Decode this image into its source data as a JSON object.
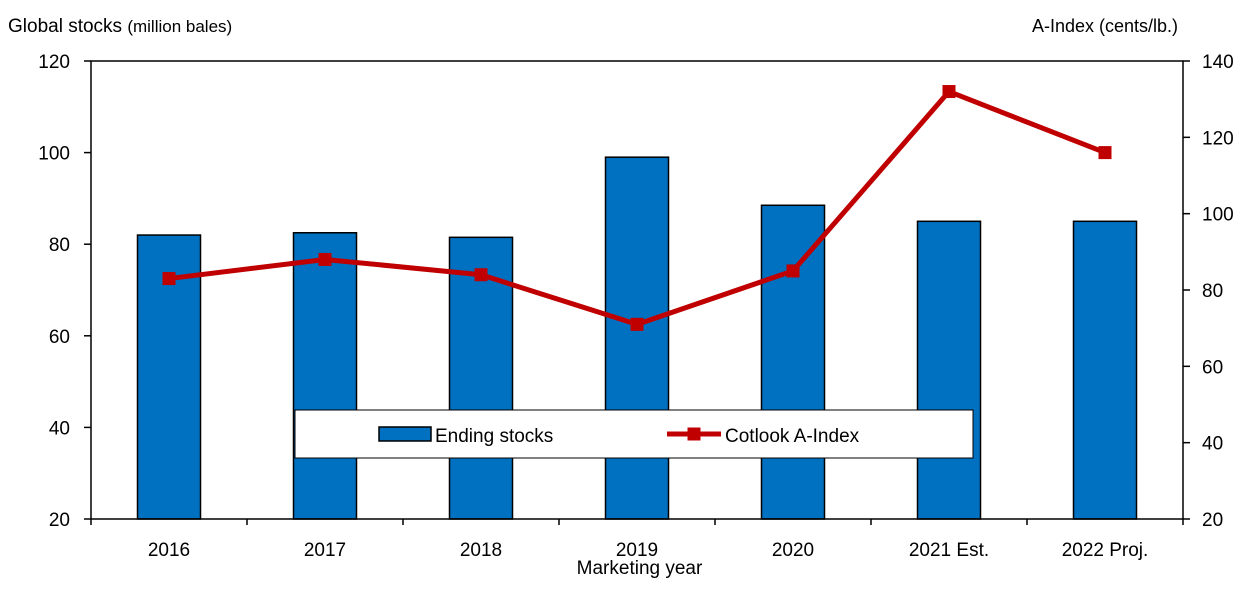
{
  "chart_data": {
    "type": "bar",
    "categories": [
      "2016",
      "2017",
      "2018",
      "2019",
      "2020",
      "2021 Est.",
      "2022 Proj."
    ],
    "series": [
      {
        "name": "Ending stocks",
        "type": "bar",
        "axis": "left",
        "color": "#0070c0",
        "values": [
          82,
          82.5,
          81.5,
          99,
          88.5,
          85,
          85
        ]
      },
      {
        "name": "Cotlook A-Index",
        "type": "line",
        "axis": "right",
        "color": "#c00000",
        "values": [
          83,
          88,
          84,
          71,
          85,
          132,
          116
        ]
      }
    ],
    "ylabel": "Global stocks",
    "ylabel_unit": "(million bales)",
    "y2label": "A-Index (cents/lb.)",
    "xlabel": "Marketing year",
    "ylim": [
      20,
      120
    ],
    "y2lim": [
      20,
      140
    ],
    "yticks": [
      20,
      40,
      60,
      80,
      100,
      120
    ],
    "y2ticks": [
      20,
      40,
      60,
      80,
      100,
      120,
      140
    ],
    "grid": false,
    "legend_position": "bottom-center"
  }
}
